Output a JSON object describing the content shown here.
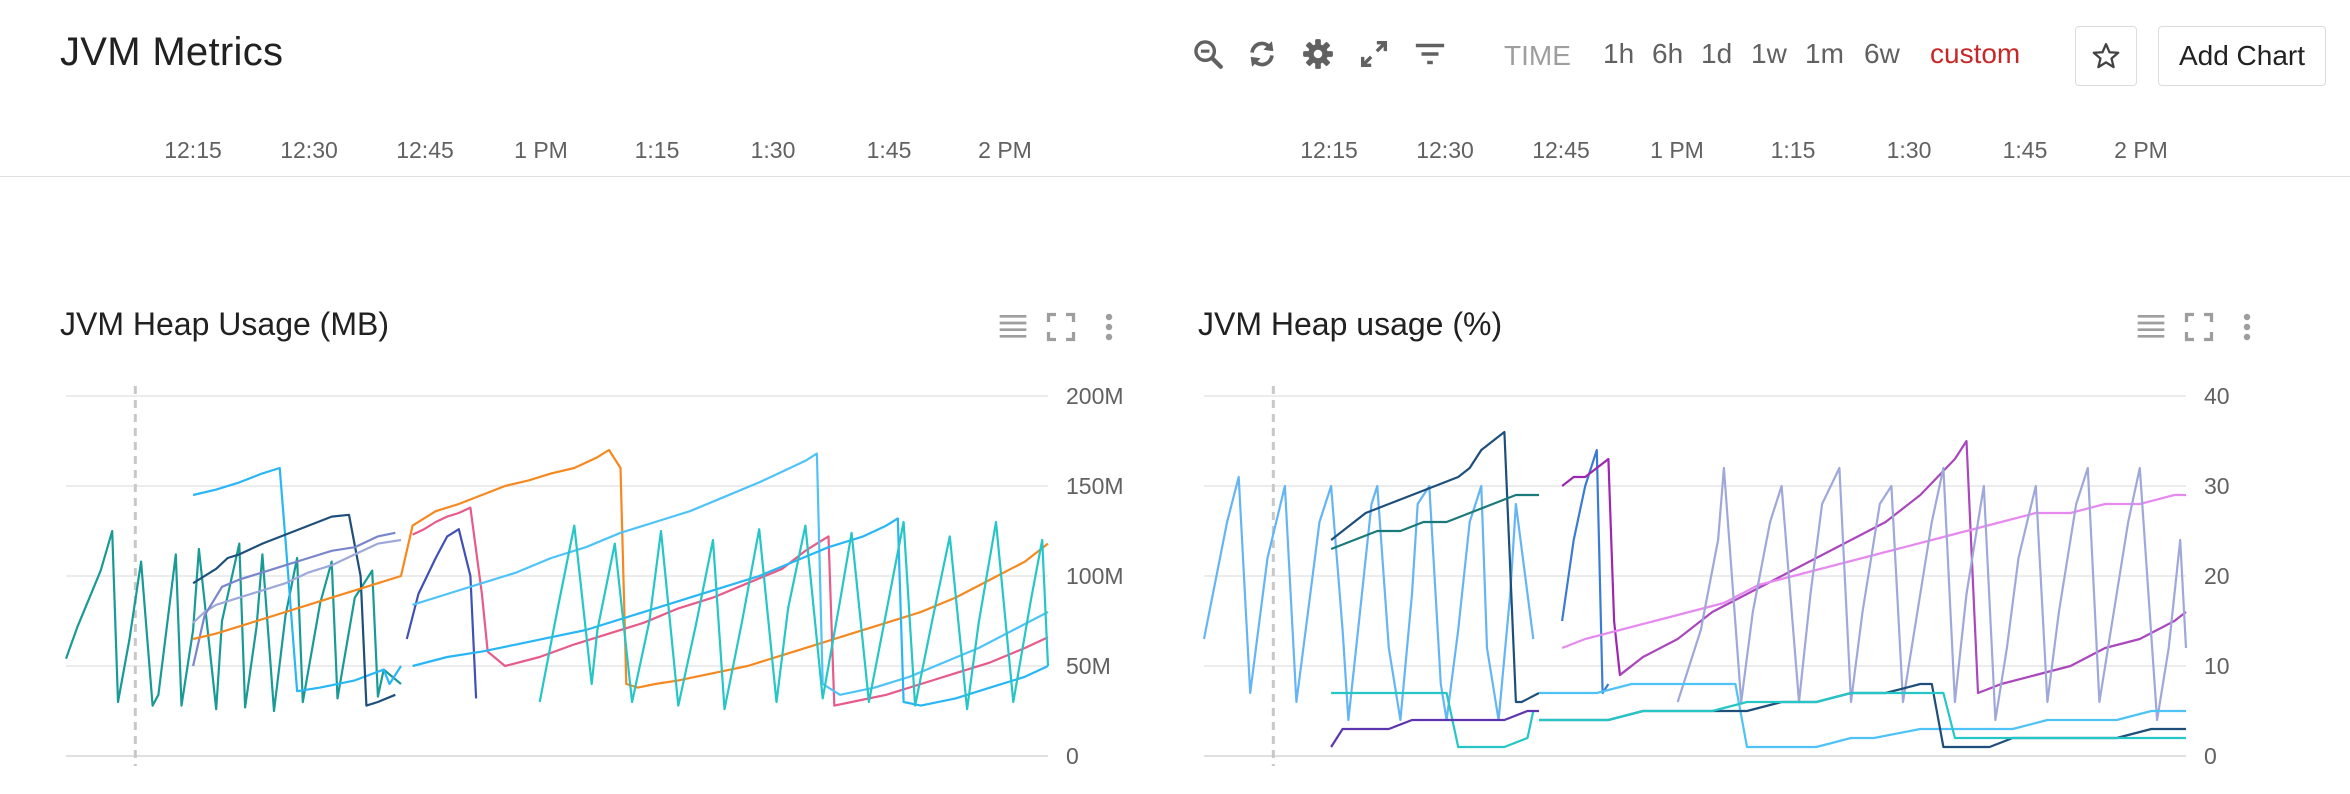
{
  "header": {
    "title": "JVM Metrics",
    "time_label": "TIME",
    "ranges": [
      "1h",
      "6h",
      "1d",
      "1w",
      "1m",
      "6w",
      "custom"
    ],
    "active_range": "custom",
    "add_chart_label": "Add Chart",
    "icons": [
      "zoom-out-icon",
      "refresh-icon",
      "gear-icon",
      "expand-icon",
      "filter-icon",
      "star-icon"
    ]
  },
  "time_axis": {
    "ticks": [
      "12:15",
      "12:30",
      "12:45",
      "1 PM",
      "1:15",
      "1:30",
      "1:45",
      "2 PM"
    ]
  },
  "colors": {
    "accent_red": "#c62828",
    "grid": "#e5e5e5"
  },
  "chart_data": [
    {
      "type": "line",
      "title": "JVM Heap Usage (MB)",
      "x_unit": "minutes after 12:00",
      "x_range": [
        2,
        87
      ],
      "ylim": [
        0,
        200
      ],
      "y_ticks": [
        0,
        50,
        100,
        150,
        200
      ],
      "y_tick_labels": [
        "0",
        "50M",
        "100M",
        "150M",
        "200M"
      ],
      "cursor_x": 8,
      "grid": true,
      "series": [
        {
          "color": "#1a9a96",
          "x": [
            2,
            3,
            5,
            6,
            6.5,
            7.5,
            8.5,
            9.5,
            10,
            11.5,
            12,
            13,
            13.5,
            15,
            15.5,
            17,
            17.5,
            18.5,
            19,
            20,
            21,
            22,
            22.5,
            24,
            25,
            25.5,
            27,
            28.5,
            29,
            29.5,
            31
          ],
          "y": [
            54,
            72,
            103,
            125,
            30,
            65,
            108,
            28,
            34,
            112,
            28,
            70,
            115,
            26,
            75,
            118,
            27,
            72,
            112,
            25,
            78,
            110,
            30,
            85,
            108,
            32,
            88,
            103,
            33,
            48,
            40
          ]
        },
        {
          "color": "#29b6f6",
          "x": [
            13,
            15,
            17,
            19,
            20.5,
            21,
            22,
            24,
            27,
            29.5,
            30,
            31
          ],
          "y": [
            145,
            148,
            152,
            157,
            160,
            120,
            36,
            38,
            42,
            48,
            40,
            50
          ]
        },
        {
          "color": "#1e4f7a",
          "x": [
            13,
            14,
            15,
            16,
            17,
            19,
            21,
            23,
            25,
            26.5,
            27.5,
            28,
            29,
            30.5
          ],
          "y": [
            96,
            100,
            104,
            110,
            112,
            118,
            123,
            128,
            133,
            134,
            100,
            28,
            30,
            34
          ]
        },
        {
          "color": "#9fa8da",
          "x": [
            13,
            14,
            15,
            17,
            19,
            21,
            23,
            25,
            27,
            29,
            31
          ],
          "y": [
            74,
            80,
            84,
            88,
            92,
            96,
            102,
            106,
            112,
            118,
            120
          ]
        },
        {
          "color": "#7986cb",
          "x": [
            13,
            14,
            15.5,
            17,
            19,
            21,
            23,
            25,
            27,
            29,
            30.5
          ],
          "y": [
            50,
            78,
            94,
            98,
            102,
            106,
            110,
            114,
            116,
            122,
            124
          ]
        },
        {
          "color": "#f5891f",
          "x": [
            13,
            15,
            17,
            19,
            21,
            23,
            25,
            27,
            29,
            31,
            32,
            34,
            36,
            38,
            40,
            42,
            44,
            46,
            48,
            49,
            50,
            50.5,
            51.5,
            53,
            55,
            58,
            61,
            64,
            67,
            70,
            73,
            76,
            79,
            82,
            85,
            87
          ],
          "y": [
            65,
            68,
            72,
            76,
            80,
            84,
            88,
            92,
            96,
            100,
            128,
            136,
            140,
            145,
            150,
            153,
            157,
            160,
            166,
            170,
            160,
            40,
            38,
            40,
            42,
            46,
            50,
            56,
            62,
            68,
            74,
            80,
            88,
            98,
            108,
            118
          ]
        },
        {
          "color": "#3f51b5",
          "x": [
            31.5,
            32.5,
            34,
            35,
            36,
            37,
            37.5
          ],
          "y": [
            65,
            90,
            110,
            122,
            126,
            100,
            32
          ]
        },
        {
          "color": "#e75b88",
          "x": [
            32,
            33,
            34,
            35,
            36,
            37,
            38,
            38.5,
            40,
            43,
            46,
            49,
            52,
            55,
            58,
            61,
            64,
            66,
            67,
            68,
            68.5,
            70,
            73,
            76,
            79,
            82,
            85,
            87
          ],
          "y": [
            123,
            126,
            130,
            133,
            135,
            138,
            90,
            58,
            50,
            55,
            62,
            68,
            74,
            82,
            88,
            96,
            104,
            114,
            118,
            122,
            28,
            30,
            34,
            40,
            46,
            52,
            60,
            66
          ]
        },
        {
          "color": "#4fc3f7",
          "x": [
            32,
            35,
            38,
            41,
            44,
            47,
            50,
            53,
            56,
            59,
            62,
            64,
            66,
            67,
            67.5,
            69,
            72,
            75,
            78,
            81,
            84,
            87
          ],
          "y": [
            84,
            90,
            96,
            102,
            110,
            116,
            124,
            130,
            136,
            144,
            152,
            158,
            164,
            168,
            40,
            34,
            38,
            44,
            52,
            60,
            70,
            80
          ]
        },
        {
          "color": "#29b6f6",
          "x": [
            32,
            35,
            38,
            41,
            44,
            47,
            50,
            53,
            56,
            59,
            62,
            65,
            68,
            71,
            73,
            74,
            74.5,
            76,
            79,
            82,
            85,
            87
          ],
          "y": [
            50,
            55,
            58,
            62,
            66,
            70,
            76,
            82,
            88,
            94,
            100,
            108,
            116,
            122,
            128,
            132,
            30,
            28,
            32,
            38,
            44,
            50
          ]
        },
        {
          "color": "#26c6c6",
          "x": [
            43,
            44.5,
            46,
            47.5,
            48,
            49.5,
            51,
            52.5,
            53.5,
            55,
            56.5,
            58,
            59,
            60.5,
            62,
            63.5,
            64.5,
            66,
            67.5,
            69,
            70,
            71.5,
            73,
            74.5,
            75.5,
            77,
            78.5,
            80,
            81,
            82.5,
            84,
            85.5,
            86.5,
            87
          ],
          "y": [
            30,
            80,
            128,
            40,
            70,
            118,
            30,
            75,
            125,
            28,
            72,
            120,
            26,
            74,
            126,
            30,
            82,
            128,
            32,
            86,
            124,
            30,
            80,
            130,
            28,
            76,
            122,
            26,
            74,
            130,
            30,
            86,
            120,
            50
          ]
        }
      ]
    },
    {
      "type": "line",
      "title": "JVM Heap usage (%)",
      "x_unit": "minutes after 12:00",
      "x_range": [
        2,
        87
      ],
      "ylim": [
        0,
        40
      ],
      "y_ticks": [
        0,
        10,
        20,
        30,
        40
      ],
      "y_tick_labels": [
        "0",
        "10",
        "20",
        "30",
        "40"
      ],
      "cursor_x": 8,
      "grid": true,
      "series": [
        {
          "color": "#64b5f6",
          "x": [
            2,
            4,
            5,
            6,
            7.5,
            9,
            10,
            11,
            12,
            13,
            14,
            14.5,
            15.5,
            16.5,
            17,
            18,
            19,
            20,
            20.5,
            21.5,
            22.5,
            23,
            24,
            25,
            26,
            26.5,
            27.5,
            28.5,
            29,
            30.5
          ],
          "y": [
            13,
            26,
            31,
            7,
            22,
            30,
            6,
            16,
            26,
            30,
            14,
            4,
            16,
            28,
            30,
            12,
            4,
            18,
            28,
            30,
            8,
            4,
            14,
            26,
            30,
            12,
            4,
            18,
            28,
            13
          ]
        },
        {
          "color": "#26c6c6",
          "x": [
            13,
            16,
            19,
            21,
            22,
            23,
            24,
            28,
            30,
            30.5
          ],
          "y": [
            7,
            7,
            7,
            7,
            7,
            7,
            1,
            1,
            2,
            5
          ]
        },
        {
          "color": "#1e4f7a",
          "x": [
            13,
            14,
            16,
            18,
            20,
            22,
            24,
            25,
            26,
            28,
            29,
            29.5,
            31
          ],
          "y": [
            24,
            25,
            27,
            28,
            29,
            30,
            31,
            32,
            34,
            36,
            6,
            6,
            7
          ]
        },
        {
          "color": "#1a7a7a",
          "x": [
            13,
            15,
            17,
            19,
            21,
            23,
            25,
            27,
            29,
            31
          ],
          "y": [
            23,
            24,
            25,
            25,
            26,
            26,
            27,
            28,
            29,
            29
          ]
        },
        {
          "color": "#5e35b1",
          "x": [
            13,
            14,
            16,
            18,
            20,
            22,
            24,
            26,
            28,
            30,
            31
          ],
          "y": [
            1,
            3,
            3,
            3,
            4,
            4,
            4,
            4,
            4,
            5,
            5
          ]
        },
        {
          "color": "#3a7bd5",
          "x": [
            33,
            34,
            35,
            36,
            36.5,
            37
          ],
          "y": [
            15,
            24,
            30,
            34,
            7,
            8
          ]
        },
        {
          "color": "#9c27b0",
          "x": [
            33,
            34,
            35,
            36,
            37,
            37.5,
            38,
            39
          ],
          "y": [
            30,
            31,
            31,
            32,
            33,
            15,
            9,
            10
          ]
        },
        {
          "color": "#ab47bc",
          "x": [
            38,
            40,
            43,
            46,
            49,
            52,
            55,
            58,
            61,
            64,
            67,
            68,
            69,
            71,
            74,
            77,
            80,
            83,
            86,
            87
          ],
          "y": [
            9,
            11,
            13,
            16,
            18,
            20,
            22,
            24,
            26,
            29,
            33,
            35,
            7,
            8,
            9,
            10,
            12,
            13,
            15,
            16
          ]
        },
        {
          "color": "#e68af0",
          "x": [
            33,
            35,
            38,
            41,
            44,
            47,
            50,
            53,
            56,
            59,
            62,
            65,
            68,
            71,
            74,
            77,
            80,
            83,
            86,
            87
          ],
          "y": [
            12,
            13,
            14,
            15,
            16,
            17,
            19,
            20,
            21,
            22,
            23,
            24,
            25,
            26,
            27,
            27,
            28,
            28,
            29,
            29
          ]
        },
        {
          "color": "#9fa8da",
          "x": [
            43,
            45,
            46.5,
            47,
            48.5,
            49.5,
            51,
            52,
            53.5,
            54.5,
            55.5,
            57,
            58,
            59,
            60.5,
            61.5,
            62.5,
            63.5,
            65,
            66,
            67,
            68,
            69.5,
            70.5,
            71.5,
            72.5,
            74,
            75,
            76,
            77.5,
            78.5,
            79.5,
            80.5,
            82,
            83,
            84.5,
            85.5,
            86.5,
            87
          ],
          "y": [
            6,
            14,
            24,
            32,
            6,
            16,
            26,
            30,
            6,
            18,
            28,
            32,
            6,
            16,
            28,
            30,
            6,
            14,
            26,
            32,
            6,
            18,
            30,
            4,
            12,
            22,
            30,
            6,
            16,
            28,
            32,
            6,
            14,
            26,
            32,
            4,
            12,
            24,
            12
          ]
        },
        {
          "color": "#4fc3f7",
          "x": [
            31,
            33,
            36,
            39,
            42,
            45,
            48,
            49,
            50,
            51,
            52,
            55,
            58,
            60,
            64,
            68,
            72,
            75,
            78,
            81,
            84,
            87
          ],
          "y": [
            7,
            7,
            7,
            8,
            8,
            8,
            8,
            1,
            1,
            1,
            1,
            1,
            2,
            2,
            3,
            3,
            3,
            4,
            4,
            4,
            5,
            5
          ]
        },
        {
          "color": "#1e4f7a",
          "x": [
            31,
            34,
            37,
            40,
            43,
            46,
            49,
            52,
            55,
            58,
            61,
            64,
            65,
            66,
            68,
            70,
            72,
            75,
            78,
            81,
            84,
            87
          ],
          "y": [
            4,
            4,
            4,
            5,
            5,
            5,
            5,
            6,
            6,
            7,
            7,
            8,
            8,
            1,
            1,
            1,
            2,
            2,
            2,
            2,
            3,
            3
          ]
        },
        {
          "color": "#26c6c6",
          "x": [
            31,
            34,
            37,
            40,
            43,
            46,
            49,
            52,
            55,
            58,
            61,
            64,
            66,
            67,
            68,
            70,
            73,
            76,
            79,
            82,
            85,
            87
          ],
          "y": [
            4,
            4,
            4,
            5,
            5,
            5,
            6,
            6,
            6,
            7,
            7,
            7,
            7,
            2,
            2,
            2,
            2,
            2,
            2,
            2,
            2,
            2
          ]
        }
      ]
    }
  ]
}
